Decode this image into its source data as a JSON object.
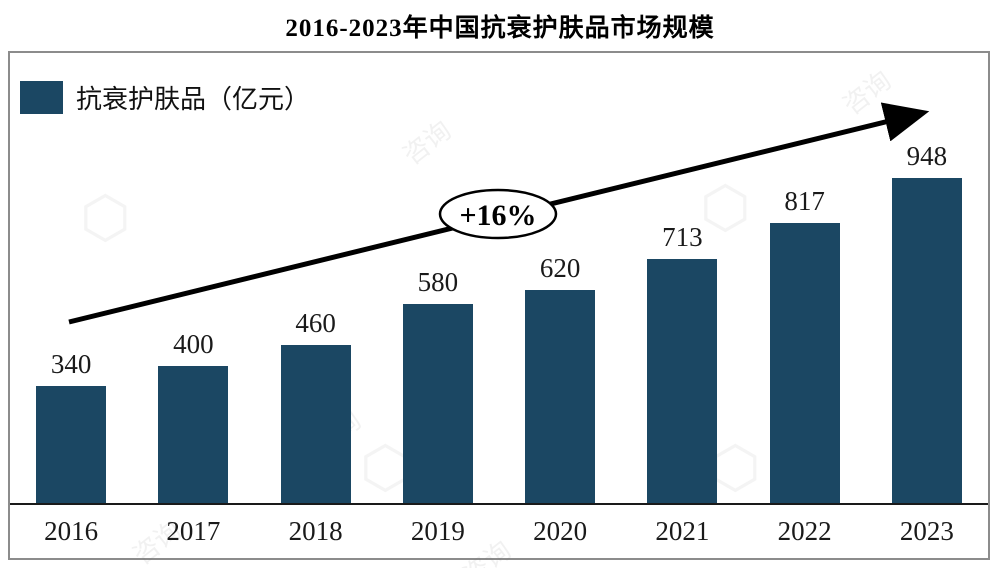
{
  "title": "2016-2023年中国抗衰护肤品市场规模",
  "legend": {
    "label": "抗衰护肤品（亿元）"
  },
  "growth_annotation": "+16%",
  "watermark_text": "咨询",
  "watermark_logo": "⬡",
  "chart_data": {
    "type": "bar",
    "title": "2016-2023年中国抗衰护肤品市场规模",
    "series_name": "抗衰护肤品（亿元）",
    "categories": [
      "2016",
      "2017",
      "2018",
      "2019",
      "2020",
      "2021",
      "2022",
      "2023"
    ],
    "values": [
      340,
      400,
      460,
      580,
      620,
      713,
      817,
      948
    ],
    "unit": "亿元",
    "annotations": [
      "+16%"
    ],
    "bar_color": "#1b4763",
    "xlabel": "",
    "ylabel": "",
    "ylim": [
      0,
      1000
    ],
    "grid": false,
    "legend_position": "top-left",
    "value_labels": true
  }
}
